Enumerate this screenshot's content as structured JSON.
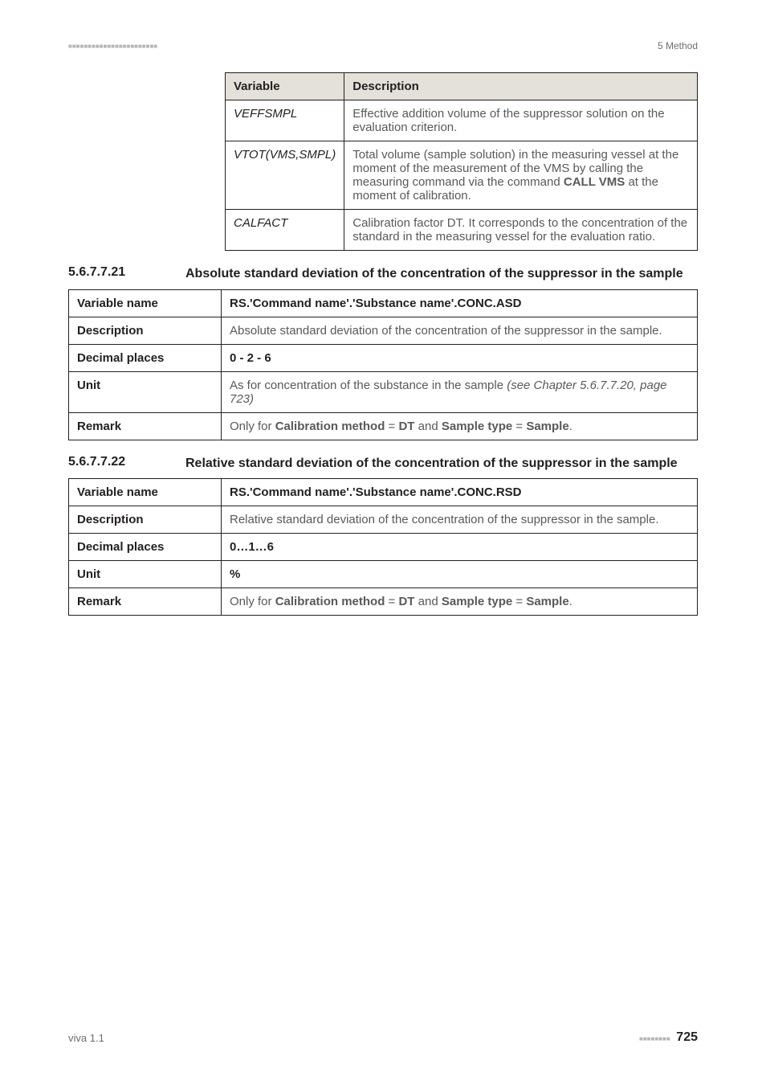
{
  "header": {
    "dots": "■■■■■■■■■■■■■■■■■■■■■■■",
    "chapter": "5 Method"
  },
  "table1": {
    "head_var": "Variable",
    "head_desc": "Description",
    "rows": [
      {
        "var": "VEFFSMPL",
        "desc": "Effective addition volume of the suppressor solution on the evaluation criterion."
      },
      {
        "var": "VTOT(VMS,SMPL)",
        "desc_pre": "Total volume (sample solution) in the measuring vessel at the moment of the measurement of the VMS by calling the measuring command via the command ",
        "desc_bold": "CALL VMS",
        "desc_post": " at the moment of calibration."
      },
      {
        "var": "CALFACT",
        "desc": "Calibration factor DT. It corresponds to the concentration of the standard in the measuring vessel for the evaluation ratio."
      }
    ]
  },
  "section1": {
    "num": "5.6.7.7.21",
    "title": "Absolute standard deviation of the concentration of the suppressor in the sample"
  },
  "table2": {
    "rows": {
      "varname_label": "Variable name",
      "varname_value": "RS.'Command name'.'Substance name'.CONC.ASD",
      "desc_label": "Description",
      "desc_value": "Absolute standard deviation of the concentration of the suppressor in the sample.",
      "dec_label": "Decimal places",
      "dec_value": "0 - 2 - 6",
      "unit_label": "Unit",
      "unit_pre": "As for concentration of the substance in the sample ",
      "unit_italic": "(see Chapter 5.6.7.7.20, page 723)",
      "remark_label": "Remark",
      "remark_p1": "Only for ",
      "remark_b1": "Calibration method",
      "remark_p2": " = ",
      "remark_b2": "DT",
      "remark_p3": " and ",
      "remark_b3": "Sample type",
      "remark_p4": " = ",
      "remark_b4": "Sample",
      "remark_p5": "."
    }
  },
  "section2": {
    "num": "5.6.7.7.22",
    "title": "Relative standard deviation of the concentration of the suppressor in the sample"
  },
  "table3": {
    "rows": {
      "varname_label": "Variable name",
      "varname_value": "RS.'Command name'.'Substance name'.CONC.RSD",
      "desc_label": "Description",
      "desc_value": "Relative standard deviation of the concentration of the suppressor in the sample.",
      "dec_label": "Decimal places",
      "dec_value": "0…1…6",
      "unit_label": "Unit",
      "unit_value": "%",
      "remark_label": "Remark",
      "remark_p1": "Only for ",
      "remark_b1": "Calibration method",
      "remark_p2": " = ",
      "remark_b2": "DT",
      "remark_p3": " and ",
      "remark_b3": "Sample type",
      "remark_p4": " = ",
      "remark_b4": "Sample",
      "remark_p5": "."
    }
  },
  "footer": {
    "left": "viva 1.1",
    "dots": "■■■■■■■■",
    "page": "725"
  }
}
